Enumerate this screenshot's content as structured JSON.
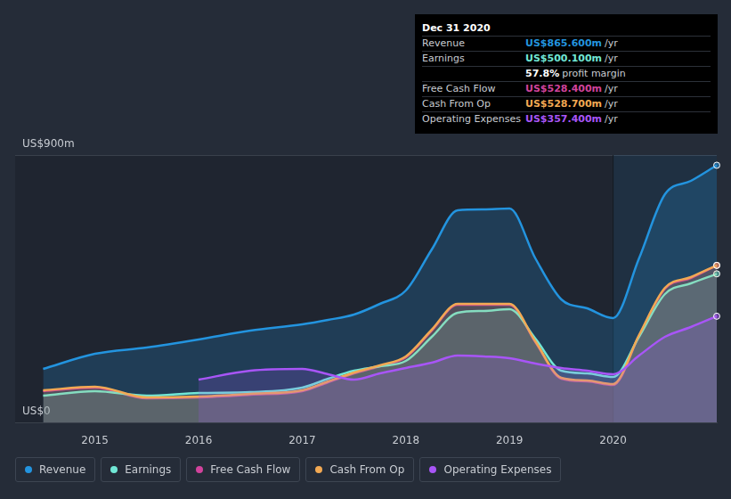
{
  "chart_data": {
    "type": "line",
    "x": [
      2014.5,
      2015,
      2015.5,
      2016,
      2016.5,
      2017,
      2017.25,
      2017.5,
      2017.75,
      2018,
      2018.25,
      2018.5,
      2018.75,
      2019,
      2019.25,
      2019.5,
      2019.75,
      2020,
      2020.25,
      2020.5,
      2020.75,
      2021
    ],
    "series": [
      {
        "name": "Revenue",
        "color": "#2394df",
        "values": [
          180,
          231,
          252,
          279,
          309,
          330,
          345,
          363,
          399,
          444,
          582,
          714,
          717,
          720,
          552,
          414,
          384,
          351,
          552,
          768,
          813,
          865.6
        ]
      },
      {
        "name": "Earnings",
        "color": "#71e7d6",
        "values": [
          90,
          105,
          90,
          99,
          102,
          117,
          147,
          174,
          189,
          207,
          288,
          369,
          375,
          381,
          282,
          174,
          165,
          153,
          288,
          432,
          468,
          500.1
        ]
      },
      {
        "name": "Free Cash Flow",
        "color": "#d1439c",
        "values": [
          105,
          117,
          81,
          84,
          93,
          105,
          135,
          165,
          189,
          219,
          309,
          396,
          396,
          396,
          270,
          147,
          138,
          126,
          291,
          450,
          486,
          528.4
        ]
      },
      {
        "name": "Cash From Op",
        "color": "#f2a953",
        "values": [
          108,
          120,
          84,
          87,
          96,
          108,
          138,
          168,
          192,
          222,
          312,
          399,
          399,
          399,
          273,
          150,
          141,
          129,
          294,
          453,
          489,
          528.7
        ]
      },
      {
        "name": "Operating Expenses",
        "color": "#a855f7",
        "values": [
          null,
          null,
          null,
          144,
          174,
          180,
          162,
          144,
          165,
          183,
          201,
          225,
          222,
          216,
          198,
          183,
          174,
          162,
          225,
          288,
          321,
          357.4
        ]
      }
    ],
    "xlim": [
      2014.23,
      2021
    ],
    "xticks": [
      2015,
      2016,
      2017,
      2018,
      2019,
      2020
    ],
    "ylim": [
      0,
      900
    ],
    "yticks": [
      {
        "value": 0,
        "label": "US$0"
      },
      {
        "value": 900,
        "label": "US$900m"
      }
    ],
    "grid": true,
    "legend": "bottom-left",
    "annotation": {
      "title": "Dec 31 2020",
      "rows": [
        {
          "label": "Revenue",
          "value": "US$865.600m",
          "unit": "/yr"
        },
        {
          "label": "Earnings",
          "value": "US$500.100m",
          "unit": "/yr"
        },
        {
          "value": "57.8%",
          "unit": "profit margin"
        },
        {
          "label": "Free Cash Flow",
          "value": "US$528.400m",
          "unit": "/yr"
        },
        {
          "label": "Cash From Op",
          "value": "US$528.700m",
          "unit": "/yr"
        },
        {
          "label": "Operating Expenses",
          "value": "US$357.400m",
          "unit": "/yr"
        }
      ]
    }
  }
}
